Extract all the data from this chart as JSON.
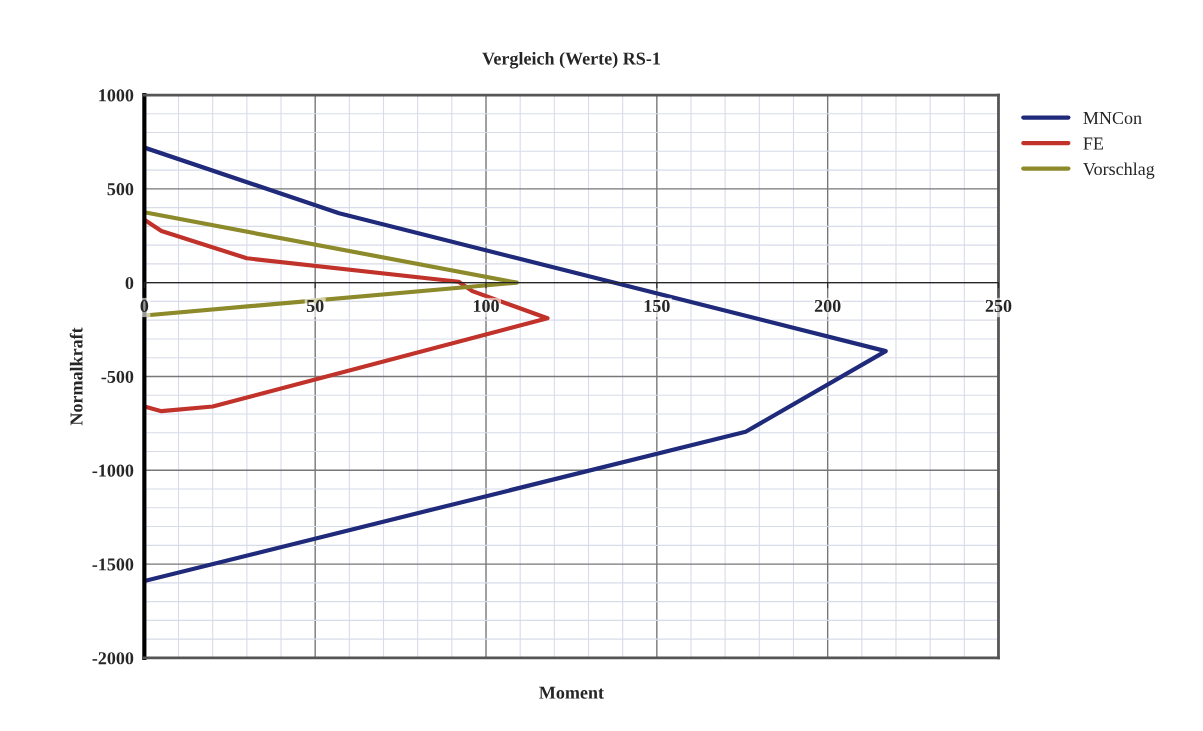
{
  "chart_data": {
    "type": "line",
    "title": "Vergleich (Werte) RS-1",
    "xlabel": "Moment",
    "ylabel": "Normalkraft",
    "xlim": [
      0,
      250
    ],
    "xticks": [
      0,
      50,
      100,
      150,
      200,
      250
    ],
    "ylim": [
      -2000,
      1000
    ],
    "yticks": [
      -2000,
      -1500,
      -1000,
      -500,
      0,
      500,
      1000
    ],
    "grid": true,
    "legend": "top right",
    "marker": "none",
    "line_style": "solid",
    "series": [
      {
        "name": "MNCon",
        "color": "#1f2a7a",
        "x": [
          0,
          57,
          217,
          176,
          0
        ],
        "values": [
          720,
          370,
          -365,
          -795,
          -1590
        ]
      },
      {
        "name": "FE",
        "color": "#c0322a",
        "x": [
          0,
          5,
          30,
          92,
          96,
          118,
          20,
          5,
          0
        ],
        "values": [
          335,
          275,
          130,
          5,
          -45,
          -190,
          -660,
          -685,
          -660
        ]
      },
      {
        "name": "Vorschlag",
        "color": "#8c8a2a",
        "x": [
          0,
          109,
          0
        ],
        "values": [
          375,
          0,
          -175
        ]
      }
    ]
  }
}
